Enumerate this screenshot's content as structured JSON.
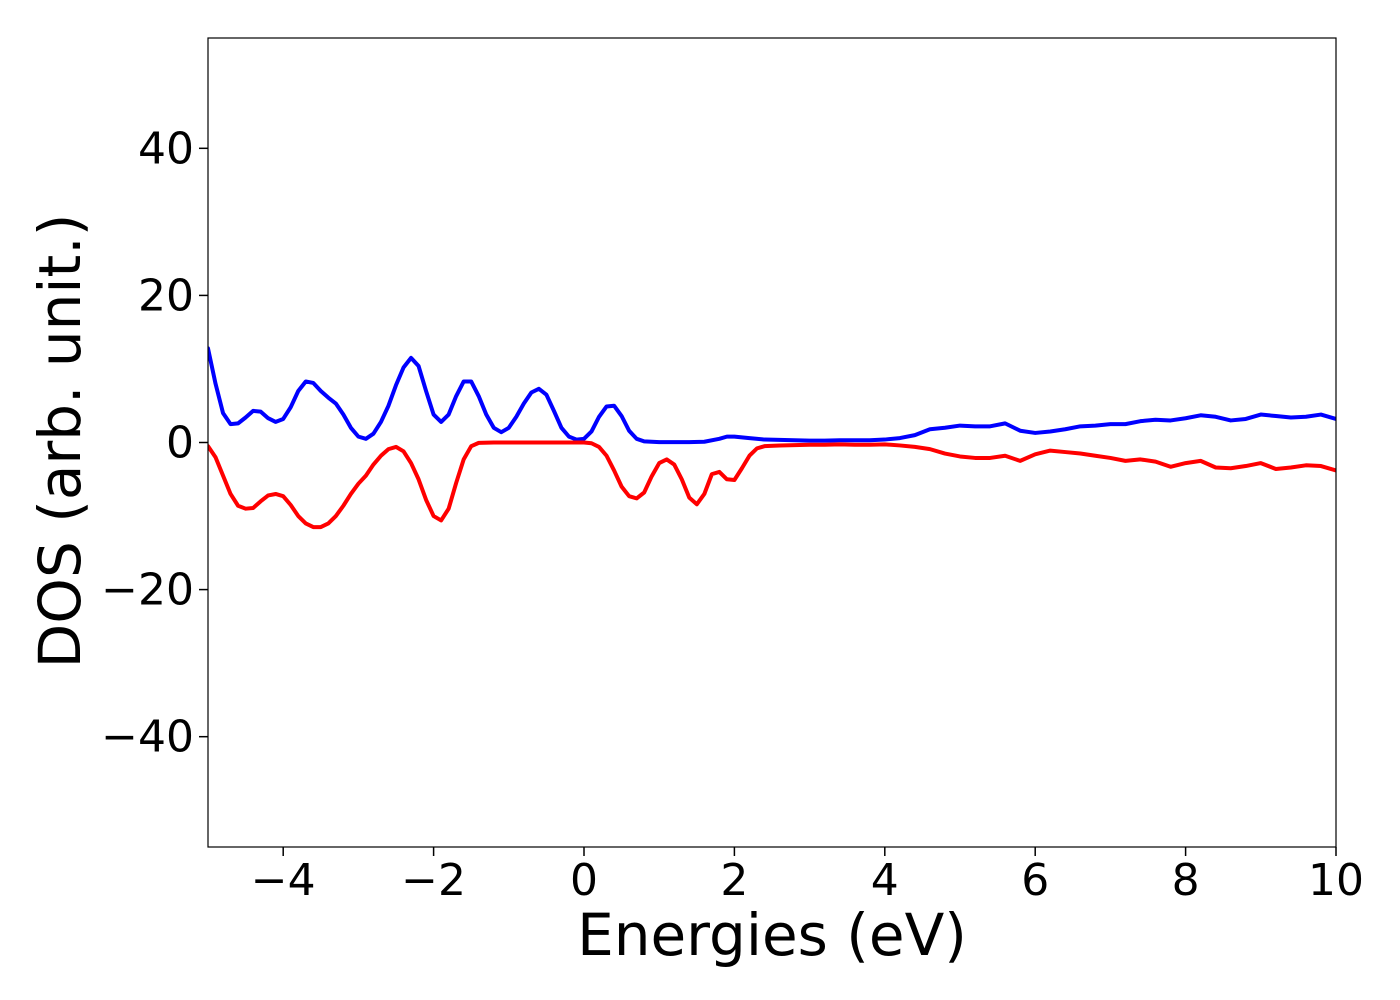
{
  "chart_data": {
    "type": "line",
    "title": "",
    "xlabel": "Energies (eV)",
    "ylabel": "DOS (arb. unit.)",
    "xlim": [
      -5,
      10
    ],
    "ylim": [
      -55,
      55
    ],
    "grid": false,
    "legend": "none",
    "x_ticks": [
      -4,
      -2,
      0,
      2,
      4,
      6,
      8,
      10
    ],
    "x_tick_labels": [
      "−4",
      "−2",
      "0",
      "2",
      "4",
      "6",
      "8",
      "10"
    ],
    "y_ticks": [
      -40,
      -20,
      0,
      20,
      40
    ],
    "y_tick_labels": [
      "−40",
      "−20",
      "0",
      "20",
      "40"
    ],
    "series": [
      {
        "color": "#0000ff",
        "points": [
          [
            -5.0,
            12.8
          ],
          [
            -4.9,
            8.0
          ],
          [
            -4.8,
            4.0
          ],
          [
            -4.7,
            2.5
          ],
          [
            -4.6,
            2.6
          ],
          [
            -4.5,
            3.4
          ],
          [
            -4.4,
            4.3
          ],
          [
            -4.3,
            4.2
          ],
          [
            -4.2,
            3.3
          ],
          [
            -4.1,
            2.8
          ],
          [
            -4.0,
            3.2
          ],
          [
            -3.9,
            4.8
          ],
          [
            -3.8,
            7.0
          ],
          [
            -3.7,
            8.3
          ],
          [
            -3.6,
            8.1
          ],
          [
            -3.5,
            7.0
          ],
          [
            -3.4,
            6.1
          ],
          [
            -3.3,
            5.3
          ],
          [
            -3.2,
            3.8
          ],
          [
            -3.1,
            2.0
          ],
          [
            -3.0,
            0.8
          ],
          [
            -2.9,
            0.5
          ],
          [
            -2.8,
            1.2
          ],
          [
            -2.7,
            2.8
          ],
          [
            -2.6,
            5.0
          ],
          [
            -2.5,
            7.8
          ],
          [
            -2.4,
            10.2
          ],
          [
            -2.3,
            11.5
          ],
          [
            -2.2,
            10.4
          ],
          [
            -2.1,
            7.0
          ],
          [
            -2.0,
            3.8
          ],
          [
            -1.9,
            2.8
          ],
          [
            -1.8,
            3.8
          ],
          [
            -1.7,
            6.3
          ],
          [
            -1.6,
            8.3
          ],
          [
            -1.5,
            8.3
          ],
          [
            -1.4,
            6.3
          ],
          [
            -1.3,
            3.8
          ],
          [
            -1.2,
            2.0
          ],
          [
            -1.1,
            1.4
          ],
          [
            -1.0,
            2.0
          ],
          [
            -0.9,
            3.5
          ],
          [
            -0.8,
            5.3
          ],
          [
            -0.7,
            6.8
          ],
          [
            -0.6,
            7.3
          ],
          [
            -0.5,
            6.5
          ],
          [
            -0.4,
            4.3
          ],
          [
            -0.3,
            2.0
          ],
          [
            -0.2,
            0.8
          ],
          [
            -0.1,
            0.4
          ],
          [
            0.0,
            0.5
          ],
          [
            0.1,
            1.5
          ],
          [
            0.2,
            3.5
          ],
          [
            0.3,
            4.9
          ],
          [
            0.4,
            5.0
          ],
          [
            0.5,
            3.6
          ],
          [
            0.6,
            1.6
          ],
          [
            0.7,
            0.5
          ],
          [
            0.8,
            0.15
          ],
          [
            1.0,
            0.05
          ],
          [
            1.2,
            0.05
          ],
          [
            1.4,
            0.05
          ],
          [
            1.6,
            0.1
          ],
          [
            1.8,
            0.5
          ],
          [
            1.9,
            0.8
          ],
          [
            2.0,
            0.8
          ],
          [
            2.2,
            0.6
          ],
          [
            2.4,
            0.4
          ],
          [
            2.6,
            0.35
          ],
          [
            2.8,
            0.3
          ],
          [
            3.0,
            0.25
          ],
          [
            3.2,
            0.25
          ],
          [
            3.4,
            0.3
          ],
          [
            3.6,
            0.3
          ],
          [
            3.8,
            0.3
          ],
          [
            4.0,
            0.4
          ],
          [
            4.2,
            0.6
          ],
          [
            4.4,
            1.0
          ],
          [
            4.6,
            1.8
          ],
          [
            4.8,
            2.0
          ],
          [
            5.0,
            2.3
          ],
          [
            5.2,
            2.2
          ],
          [
            5.4,
            2.2
          ],
          [
            5.6,
            2.6
          ],
          [
            5.8,
            1.6
          ],
          [
            6.0,
            1.3
          ],
          [
            6.2,
            1.5
          ],
          [
            6.4,
            1.8
          ],
          [
            6.6,
            2.2
          ],
          [
            6.8,
            2.3
          ],
          [
            7.0,
            2.5
          ],
          [
            7.2,
            2.5
          ],
          [
            7.4,
            2.9
          ],
          [
            7.6,
            3.1
          ],
          [
            7.8,
            3.0
          ],
          [
            8.0,
            3.3
          ],
          [
            8.2,
            3.7
          ],
          [
            8.4,
            3.5
          ],
          [
            8.6,
            3.0
          ],
          [
            8.8,
            3.2
          ],
          [
            9.0,
            3.8
          ],
          [
            9.2,
            3.6
          ],
          [
            9.4,
            3.4
          ],
          [
            9.6,
            3.5
          ],
          [
            9.8,
            3.8
          ],
          [
            10.0,
            3.2
          ]
        ]
      },
      {
        "color": "#ff0000",
        "points": [
          [
            -5.0,
            -0.5
          ],
          [
            -4.9,
            -2.0
          ],
          [
            -4.8,
            -4.5
          ],
          [
            -4.7,
            -7.0
          ],
          [
            -4.6,
            -8.6
          ],
          [
            -4.5,
            -9.0
          ],
          [
            -4.4,
            -8.9
          ],
          [
            -4.3,
            -8.0
          ],
          [
            -4.2,
            -7.2
          ],
          [
            -4.1,
            -7.0
          ],
          [
            -4.0,
            -7.3
          ],
          [
            -3.9,
            -8.5
          ],
          [
            -3.8,
            -10.0
          ],
          [
            -3.7,
            -11.0
          ],
          [
            -3.6,
            -11.5
          ],
          [
            -3.5,
            -11.5
          ],
          [
            -3.4,
            -11.0
          ],
          [
            -3.3,
            -10.0
          ],
          [
            -3.2,
            -8.6
          ],
          [
            -3.1,
            -7.0
          ],
          [
            -3.0,
            -5.6
          ],
          [
            -2.9,
            -4.5
          ],
          [
            -2.8,
            -3.0
          ],
          [
            -2.7,
            -1.8
          ],
          [
            -2.6,
            -0.9
          ],
          [
            -2.5,
            -0.6
          ],
          [
            -2.4,
            -1.2
          ],
          [
            -2.3,
            -2.8
          ],
          [
            -2.2,
            -5.0
          ],
          [
            -2.1,
            -7.8
          ],
          [
            -2.0,
            -10.0
          ],
          [
            -1.9,
            -10.6
          ],
          [
            -1.8,
            -9.0
          ],
          [
            -1.7,
            -5.5
          ],
          [
            -1.6,
            -2.3
          ],
          [
            -1.5,
            -0.5
          ],
          [
            -1.4,
            -0.05
          ],
          [
            -1.2,
            0.0
          ],
          [
            -1.0,
            0.0
          ],
          [
            -0.8,
            0.0
          ],
          [
            -0.6,
            0.0
          ],
          [
            -0.4,
            0.0
          ],
          [
            -0.2,
            0.0
          ],
          [
            0.0,
            0.0
          ],
          [
            0.1,
            -0.1
          ],
          [
            0.2,
            -0.6
          ],
          [
            0.3,
            -1.8
          ],
          [
            0.4,
            -3.8
          ],
          [
            0.5,
            -6.0
          ],
          [
            0.6,
            -7.3
          ],
          [
            0.7,
            -7.6
          ],
          [
            0.8,
            -6.8
          ],
          [
            0.9,
            -4.6
          ],
          [
            1.0,
            -2.8
          ],
          [
            1.1,
            -2.3
          ],
          [
            1.2,
            -3.0
          ],
          [
            1.3,
            -5.0
          ],
          [
            1.4,
            -7.5
          ],
          [
            1.5,
            -8.4
          ],
          [
            1.6,
            -7.0
          ],
          [
            1.7,
            -4.3
          ],
          [
            1.8,
            -4.0
          ],
          [
            1.9,
            -5.0
          ],
          [
            2.0,
            -5.1
          ],
          [
            2.1,
            -3.5
          ],
          [
            2.2,
            -1.8
          ],
          [
            2.3,
            -0.8
          ],
          [
            2.4,
            -0.5
          ],
          [
            2.6,
            -0.4
          ],
          [
            2.8,
            -0.35
          ],
          [
            3.0,
            -0.3
          ],
          [
            3.2,
            -0.3
          ],
          [
            3.4,
            -0.25
          ],
          [
            3.6,
            -0.3
          ],
          [
            3.8,
            -0.3
          ],
          [
            4.0,
            -0.25
          ],
          [
            4.2,
            -0.4
          ],
          [
            4.4,
            -0.6
          ],
          [
            4.6,
            -0.9
          ],
          [
            4.8,
            -1.5
          ],
          [
            5.0,
            -1.9
          ],
          [
            5.2,
            -2.1
          ],
          [
            5.4,
            -2.1
          ],
          [
            5.6,
            -1.8
          ],
          [
            5.8,
            -2.5
          ],
          [
            6.0,
            -1.6
          ],
          [
            6.2,
            -1.1
          ],
          [
            6.4,
            -1.3
          ],
          [
            6.6,
            -1.5
          ],
          [
            6.8,
            -1.8
          ],
          [
            7.0,
            -2.1
          ],
          [
            7.2,
            -2.5
          ],
          [
            7.4,
            -2.3
          ],
          [
            7.6,
            -2.6
          ],
          [
            7.8,
            -3.3
          ],
          [
            8.0,
            -2.8
          ],
          [
            8.2,
            -2.5
          ],
          [
            8.4,
            -3.4
          ],
          [
            8.6,
            -3.5
          ],
          [
            8.8,
            -3.2
          ],
          [
            9.0,
            -2.8
          ],
          [
            9.2,
            -3.6
          ],
          [
            9.4,
            -3.4
          ],
          [
            9.6,
            -3.1
          ],
          [
            9.8,
            -3.2
          ],
          [
            10.0,
            -3.8
          ]
        ]
      }
    ]
  }
}
